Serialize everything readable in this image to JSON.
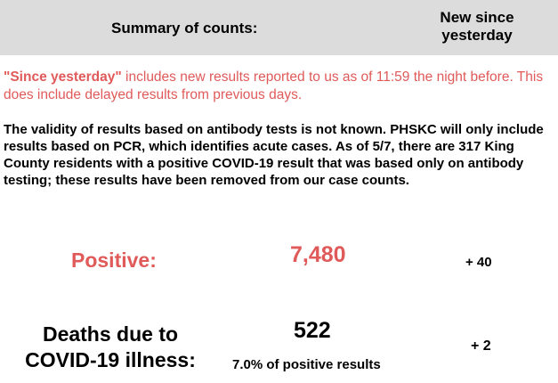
{
  "header": {
    "title": "Summary of counts:",
    "new_since": "New since yesterday"
  },
  "notes": {
    "since_yesterday_strong": "\"Since yesterday\"",
    "since_yesterday_rest": " includes new results reported to us as of 11:59 the night before. This does include delayed results from previous days.",
    "antibody": "The validity of results based on antibody tests is not known. PHSKC will only include results based on PCR, which identifies acute cases. As of 5/7, there are 317 King County residents with a positive COVID-19 result that was based only on antibody testing; these results have been removed from our case counts."
  },
  "positive": {
    "label": "Positive:",
    "value": "7,480",
    "new": "+ 40"
  },
  "deaths": {
    "label": "Deaths due to COVID-19 illness:",
    "value": "522",
    "percent": "7.0% of positive results",
    "new": "+ 2"
  },
  "colors": {
    "header_bg": "#dcdcdc",
    "accent_red": "#e05a5a",
    "text": "#000000"
  }
}
